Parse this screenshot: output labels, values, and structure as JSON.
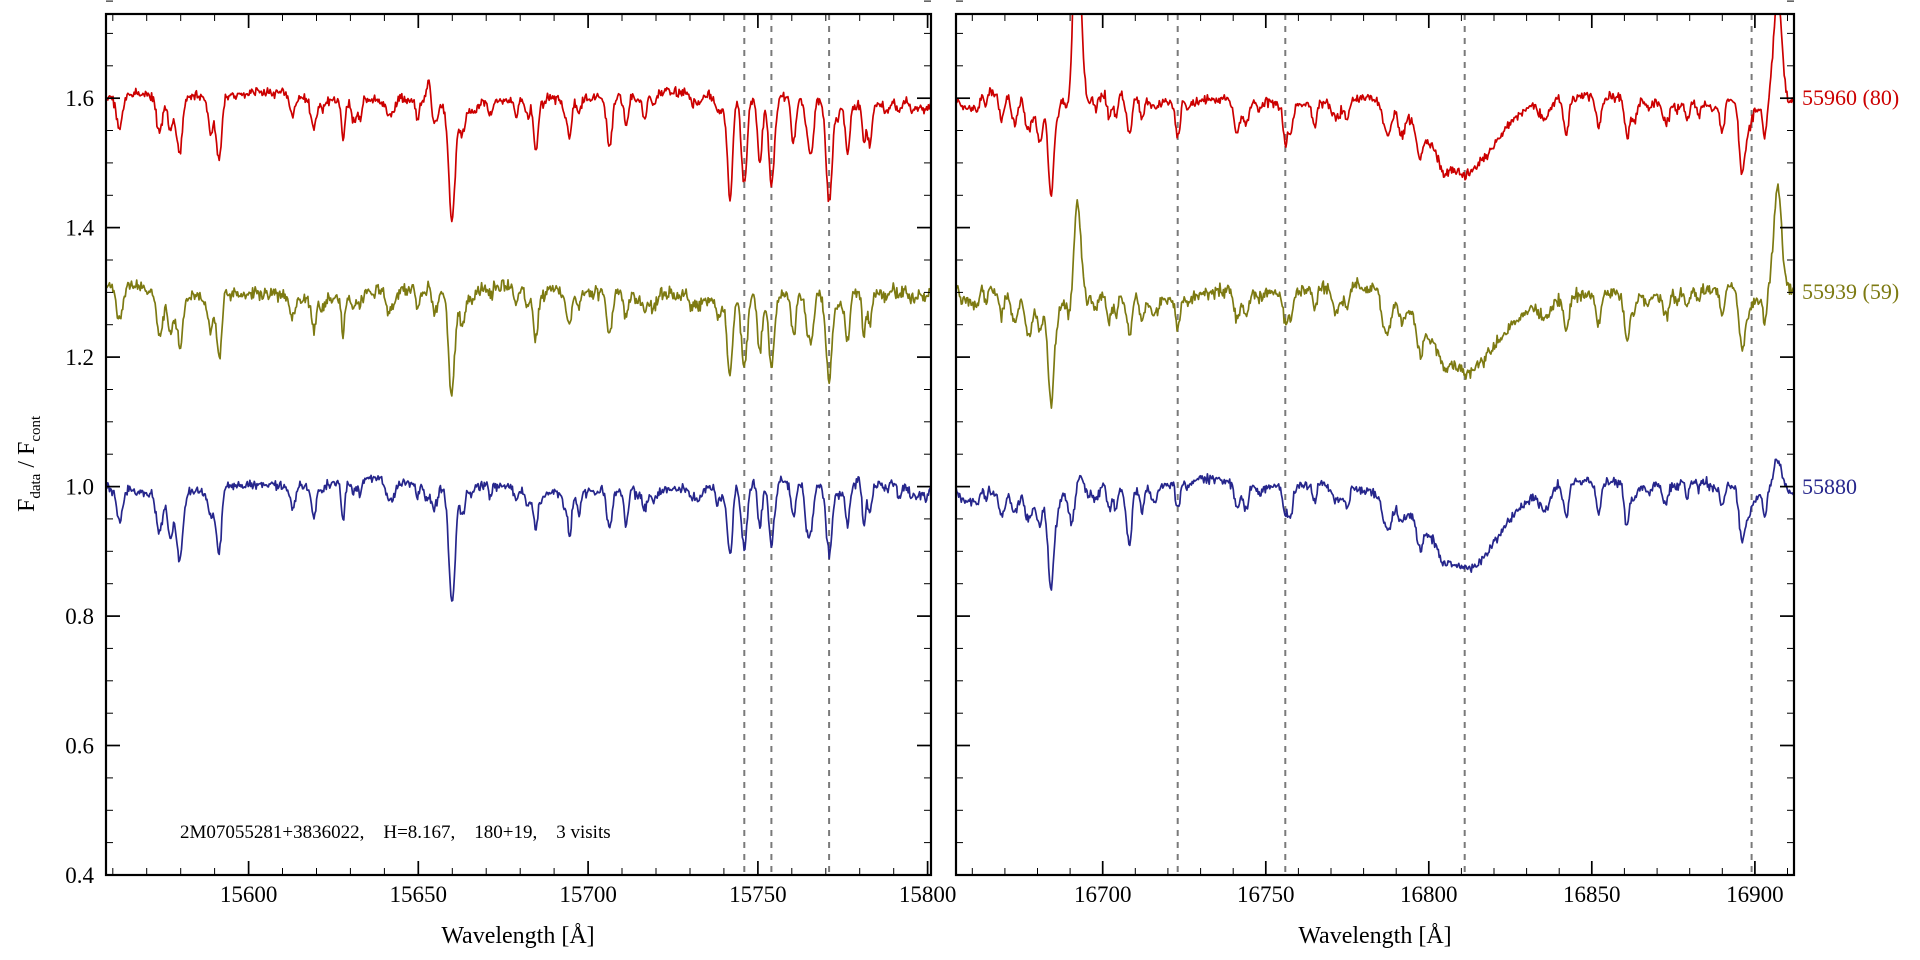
{
  "figure": {
    "background": "#ffffff",
    "annotation": "2M07055281+3836022,    H=8.167,    180+19,    3 visits",
    "ylabel": {
      "f1": "F",
      "s1": "data",
      "f2": " / F",
      "s2": "cont"
    }
  },
  "chart_data": {
    "type": "line",
    "title": "",
    "xlabel": "Wavelength [Å]",
    "ylabel": "F_data / F_cont",
    "ylim": [
      0.4,
      1.73
    ],
    "yticks_major": [
      0.4,
      0.6,
      0.8,
      1.0,
      1.2,
      1.4,
      1.6
    ],
    "ytick_minor_step": 0.05,
    "grid": "off",
    "legend_position": "right-outside",
    "colors": {
      "frame": "#000000",
      "dashed_reference": "#7a7a7a"
    },
    "series": [
      {
        "label": "55960 (80)",
        "color": "#cc0000",
        "continuum": 1.6,
        "sky_scale": 1.15,
        "noise": 0.0065
      },
      {
        "label": "55939 (59)",
        "color": "#7d7a12",
        "continuum": 1.3,
        "sky_scale": 0.95,
        "noise": 0.0085
      },
      {
        "label": "55880",
        "color": "#26268c",
        "continuum": 1.0,
        "sky_scale": 0.8,
        "noise": 0.0065
      }
    ],
    "panels": [
      {
        "name": "left",
        "xlim": [
          15558,
          15801
        ],
        "xticks_major": [
          15600,
          15650,
          15700,
          15750,
          15800
        ],
        "xtick_minor_step": 10,
        "dashed_lines": [
          15746,
          15754,
          15771
        ],
        "random_lines": {
          "seed": 11,
          "count": 72,
          "dmin": 0.012,
          "dmax": 0.055
        },
        "absorption": [
          [
            15562,
            0.05,
            0.9
          ],
          [
            15741.5,
            0.05,
            0.7,
            "sky"
          ],
          [
            15746,
            0.1,
            0.8,
            "sky"
          ],
          [
            15750.5,
            0.05,
            0.6,
            "sky"
          ],
          [
            15754,
            0.12,
            0.8,
            "sky"
          ],
          [
            15760.5,
            0.065,
            0.7,
            "sky"
          ],
          [
            15766,
            0.045,
            0.6,
            "sky"
          ],
          [
            15771,
            0.135,
            0.9,
            "sky"
          ],
          [
            15776.5,
            0.05,
            0.6,
            "sky"
          ],
          [
            15783,
            0.04,
            0.6,
            "sky"
          ]
        ],
        "emission": [
          {
            "c": 15653,
            "w": 0.7,
            "amp": [
              0.05,
              0.035,
              0.0
            ]
          }
        ]
      },
      {
        "name": "right",
        "xlim": [
          16655,
          16912
        ],
        "xticks_major": [
          16700,
          16750,
          16800,
          16850,
          16900
        ],
        "xtick_minor_step": 10,
        "dashed_lines": [
          16723,
          16756,
          16811,
          16899
        ],
        "random_lines": {
          "seed": 23,
          "count": 52,
          "dmin": 0.01,
          "dmax": 0.045
        },
        "absorption": [
          [
            16811,
            0.125,
            10
          ],
          [
            16723,
            0.05,
            0.7,
            "sky"
          ],
          [
            16756,
            0.05,
            0.7,
            "sky"
          ],
          [
            16765,
            0.03,
            0.6,
            "sky"
          ],
          [
            16669,
            0.04,
            0.8
          ],
          [
            16684,
            0.05,
            0.8
          ],
          [
            16702,
            0.04,
            0.7
          ],
          [
            16712,
            0.035,
            0.7
          ],
          [
            16744,
            0.04,
            0.8
          ],
          [
            16775,
            0.03,
            0.7
          ],
          [
            16842,
            0.045,
            0.8
          ],
          [
            16852,
            0.035,
            0.7
          ],
          [
            16873,
            0.03,
            0.7
          ],
          [
            16890,
            0.045,
            0.7,
            "sky"
          ],
          [
            16896,
            0.095,
            0.9,
            "sky"
          ],
          [
            16903,
            0.05,
            0.6,
            "sky"
          ]
        ],
        "emission": [
          {
            "c": 16692,
            "w": 1.1,
            "amp": [
              0.34,
              0.17,
              0.03
            ]
          },
          {
            "c": 16907,
            "w": 1.2,
            "amp": [
              0.17,
              0.16,
              0.05
            ]
          }
        ]
      }
    ]
  }
}
